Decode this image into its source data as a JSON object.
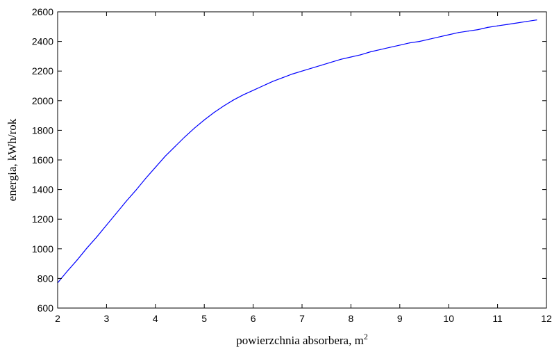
{
  "chart_data": {
    "type": "line",
    "title": "",
    "xlabel": "powierzchnia absorbera, m",
    "xlabel_superscript": "2",
    "ylabel": "energia, kWh/rok",
    "xlim": [
      2,
      12
    ],
    "ylim": [
      600,
      2600
    ],
    "xticks": [
      2,
      3,
      4,
      5,
      6,
      7,
      8,
      9,
      10,
      11,
      12
    ],
    "yticks": [
      600,
      800,
      1000,
      1200,
      1400,
      1600,
      1800,
      2000,
      2200,
      2400,
      2600
    ],
    "grid": false,
    "series": [
      {
        "color": "#0000ff",
        "x": [
          2.0,
          2.2,
          2.4,
          2.6,
          2.8,
          3.0,
          3.2,
          3.4,
          3.6,
          3.8,
          4.0,
          4.2,
          4.4,
          4.6,
          4.8,
          5.0,
          5.2,
          5.4,
          5.6,
          5.8,
          6.0,
          6.2,
          6.4,
          6.6,
          6.8,
          7.0,
          7.2,
          7.4,
          7.6,
          7.8,
          8.0,
          8.2,
          8.4,
          8.6,
          8.8,
          9.0,
          9.2,
          9.4,
          9.6,
          9.8,
          10.0,
          10.2,
          10.4,
          10.6,
          10.8,
          11.0,
          11.2,
          11.4,
          11.6,
          11.8
        ],
        "y": [
          770,
          850,
          925,
          1005,
          1080,
          1160,
          1240,
          1320,
          1395,
          1475,
          1550,
          1625,
          1690,
          1755,
          1815,
          1870,
          1920,
          1965,
          2005,
          2040,
          2070,
          2100,
          2130,
          2155,
          2180,
          2200,
          2220,
          2240,
          2260,
          2280,
          2295,
          2310,
          2330,
          2345,
          2360,
          2375,
          2390,
          2400,
          2415,
          2430,
          2445,
          2460,
          2470,
          2480,
          2495,
          2505,
          2515,
          2525,
          2535,
          2545
        ]
      }
    ]
  }
}
